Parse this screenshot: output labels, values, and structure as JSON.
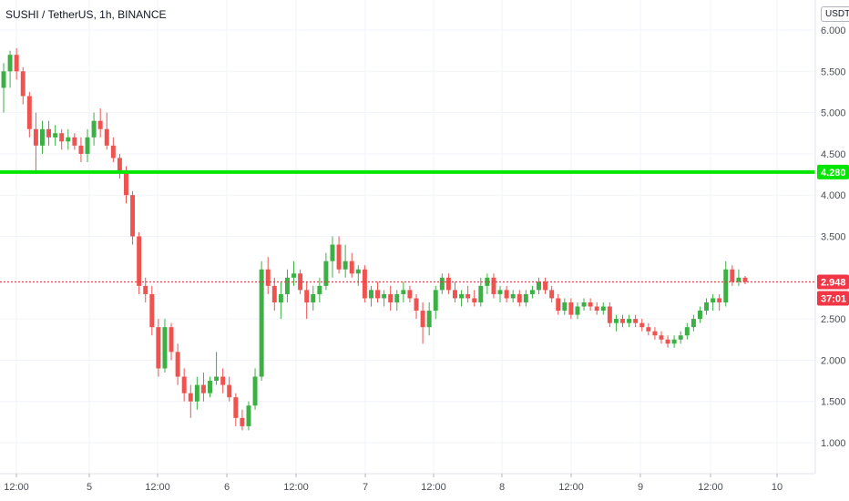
{
  "header": {
    "title": "SUSHI / TetherUS, 1h, BINANCE",
    "unit_button": "USDT"
  },
  "colors": {
    "up": "#26a69a",
    "up_green": "#3cb043",
    "down": "#ef5350",
    "support": "#00e600",
    "last": "#f23645",
    "grid": "#f0f3fa"
  },
  "chart_data": {
    "type": "candlestick",
    "title": "SUSHI / TetherUS, 1h, BINANCE",
    "y_ticks": [
      "1.000",
      "1.500",
      "2.000",
      "2.500",
      "3.500",
      "4.000",
      "4.500",
      "5.000",
      "5.500",
      "6.000"
    ],
    "x_ticks": [
      "12:00",
      "5",
      "12:00",
      "6",
      "12:00",
      "7",
      "12:00",
      "8",
      "12:00",
      "9",
      "12:00",
      "10"
    ],
    "ylim": [
      0.8,
      6.1
    ],
    "support_level": {
      "value": 4.28,
      "label": "4.280"
    },
    "last_price": {
      "value": 2.948,
      "label": "2.948",
      "countdown": "37:01"
    },
    "grid": true,
    "candles": [
      [
        5.3,
        5.6,
        5.0,
        5.5
      ],
      [
        5.5,
        5.75,
        5.3,
        5.7
      ],
      [
        5.7,
        5.78,
        5.4,
        5.5
      ],
      [
        5.5,
        5.55,
        5.1,
        5.2
      ],
      [
        5.2,
        5.25,
        4.7,
        4.8
      ],
      [
        4.8,
        5.0,
        4.3,
        4.6
      ],
      [
        4.6,
        4.9,
        4.5,
        4.8
      ],
      [
        4.8,
        4.9,
        4.6,
        4.7
      ],
      [
        4.7,
        4.85,
        4.6,
        4.75
      ],
      [
        4.75,
        4.8,
        4.55,
        4.65
      ],
      [
        4.65,
        4.8,
        4.55,
        4.7
      ],
      [
        4.7,
        4.75,
        4.55,
        4.6
      ],
      [
        4.6,
        4.7,
        4.4,
        4.5
      ],
      [
        4.5,
        4.8,
        4.4,
        4.7
      ],
      [
        4.7,
        5.0,
        4.6,
        4.9
      ],
      [
        4.9,
        5.05,
        4.7,
        4.8
      ],
      [
        4.8,
        5.0,
        4.55,
        4.6
      ],
      [
        4.6,
        4.7,
        4.4,
        4.45
      ],
      [
        4.45,
        4.5,
        4.2,
        4.3
      ],
      [
        4.3,
        4.35,
        3.9,
        4.0
      ],
      [
        4.0,
        4.05,
        3.4,
        3.5
      ],
      [
        3.5,
        3.55,
        2.8,
        2.9
      ],
      [
        2.9,
        3.0,
        2.7,
        2.8
      ],
      [
        2.8,
        2.9,
        2.3,
        2.4
      ],
      [
        2.4,
        2.5,
        1.8,
        1.9
      ],
      [
        1.9,
        2.5,
        1.85,
        2.4
      ],
      [
        2.4,
        2.45,
        2.0,
        2.1
      ],
      [
        2.1,
        2.2,
        1.7,
        1.8
      ],
      [
        1.8,
        1.9,
        1.5,
        1.6
      ],
      [
        1.6,
        1.7,
        1.3,
        1.5
      ],
      [
        1.5,
        1.8,
        1.4,
        1.7
      ],
      [
        1.7,
        1.85,
        1.5,
        1.6
      ],
      [
        1.6,
        1.8,
        1.55,
        1.75
      ],
      [
        1.75,
        2.1,
        1.7,
        1.8
      ],
      [
        1.8,
        1.9,
        1.6,
        1.7
      ],
      [
        1.7,
        1.8,
        1.5,
        1.55
      ],
      [
        1.55,
        1.6,
        1.2,
        1.3
      ],
      [
        1.3,
        1.4,
        1.15,
        1.2
      ],
      [
        1.2,
        1.5,
        1.15,
        1.45
      ],
      [
        1.45,
        1.9,
        1.4,
        1.8
      ],
      [
        1.8,
        3.2,
        1.75,
        3.1
      ],
      [
        3.1,
        3.25,
        2.8,
        2.9
      ],
      [
        2.9,
        3.0,
        2.6,
        2.7
      ],
      [
        2.7,
        2.95,
        2.5,
        2.8
      ],
      [
        2.8,
        3.1,
        2.7,
        3.0
      ],
      [
        3.0,
        3.2,
        2.9,
        3.05
      ],
      [
        3.05,
        3.1,
        2.8,
        2.85
      ],
      [
        2.85,
        2.95,
        2.5,
        2.7
      ],
      [
        2.7,
        2.9,
        2.6,
        2.8
      ],
      [
        2.8,
        3.0,
        2.7,
        2.9
      ],
      [
        2.9,
        3.3,
        2.85,
        3.2
      ],
      [
        3.2,
        3.5,
        3.0,
        3.4
      ],
      [
        3.4,
        3.5,
        3.05,
        3.1
      ],
      [
        3.1,
        3.4,
        3.0,
        3.2
      ],
      [
        3.2,
        3.3,
        3.0,
        3.05
      ],
      [
        3.05,
        3.15,
        2.9,
        3.1
      ],
      [
        3.1,
        3.15,
        2.7,
        2.75
      ],
      [
        2.75,
        2.9,
        2.65,
        2.85
      ],
      [
        2.85,
        2.95,
        2.7,
        2.75
      ],
      [
        2.75,
        2.85,
        2.65,
        2.8
      ],
      [
        2.8,
        2.9,
        2.6,
        2.7
      ],
      [
        2.7,
        2.85,
        2.6,
        2.8
      ],
      [
        2.8,
        2.95,
        2.7,
        2.85
      ],
      [
        2.85,
        2.9,
        2.7,
        2.75
      ],
      [
        2.75,
        2.8,
        2.5,
        2.6
      ],
      [
        2.6,
        2.7,
        2.2,
        2.4
      ],
      [
        2.4,
        2.7,
        2.3,
        2.6
      ],
      [
        2.6,
        2.9,
        2.5,
        2.85
      ],
      [
        2.85,
        3.05,
        2.8,
        3.0
      ],
      [
        3.0,
        3.05,
        2.8,
        2.85
      ],
      [
        2.85,
        2.95,
        2.7,
        2.75
      ],
      [
        2.75,
        2.85,
        2.65,
        2.8
      ],
      [
        2.8,
        2.9,
        2.7,
        2.75
      ],
      [
        2.75,
        2.85,
        2.65,
        2.7
      ],
      [
        2.7,
        3.0,
        2.65,
        2.9
      ],
      [
        2.9,
        3.05,
        2.8,
        3.0
      ],
      [
        3.0,
        3.05,
        2.75,
        2.8
      ],
      [
        2.8,
        2.9,
        2.7,
        2.85
      ],
      [
        2.85,
        2.9,
        2.7,
        2.75
      ],
      [
        2.75,
        2.85,
        2.7,
        2.8
      ],
      [
        2.8,
        2.85,
        2.65,
        2.7
      ],
      [
        2.7,
        2.85,
        2.65,
        2.8
      ],
      [
        2.8,
        2.9,
        2.75,
        2.85
      ],
      [
        2.85,
        3.0,
        2.8,
        2.95
      ],
      [
        2.95,
        3.0,
        2.8,
        2.85
      ],
      [
        2.85,
        2.9,
        2.7,
        2.75
      ],
      [
        2.75,
        2.8,
        2.55,
        2.6
      ],
      [
        2.6,
        2.75,
        2.55,
        2.7
      ],
      [
        2.7,
        2.75,
        2.5,
        2.55
      ],
      [
        2.55,
        2.7,
        2.5,
        2.65
      ],
      [
        2.65,
        2.75,
        2.6,
        2.7
      ],
      [
        2.7,
        2.75,
        2.6,
        2.65
      ],
      [
        2.65,
        2.7,
        2.55,
        2.6
      ],
      [
        2.6,
        2.7,
        2.55,
        2.65
      ],
      [
        2.65,
        2.7,
        2.4,
        2.45
      ],
      [
        2.45,
        2.55,
        2.35,
        2.5
      ],
      [
        2.5,
        2.55,
        2.4,
        2.45
      ],
      [
        2.45,
        2.55,
        2.4,
        2.5
      ],
      [
        2.5,
        2.55,
        2.4,
        2.45
      ],
      [
        2.45,
        2.5,
        2.35,
        2.4
      ],
      [
        2.4,
        2.45,
        2.3,
        2.35
      ],
      [
        2.35,
        2.4,
        2.25,
        2.3
      ],
      [
        2.3,
        2.35,
        2.2,
        2.25
      ],
      [
        2.25,
        2.3,
        2.15,
        2.2
      ],
      [
        2.2,
        2.3,
        2.15,
        2.25
      ],
      [
        2.25,
        2.35,
        2.2,
        2.3
      ],
      [
        2.3,
        2.45,
        2.25,
        2.4
      ],
      [
        2.4,
        2.55,
        2.35,
        2.5
      ],
      [
        2.5,
        2.65,
        2.45,
        2.6
      ],
      [
        2.6,
        2.75,
        2.55,
        2.7
      ],
      [
        2.7,
        2.8,
        2.6,
        2.75
      ],
      [
        2.75,
        2.8,
        2.6,
        2.7
      ],
      [
        2.7,
        3.2,
        2.65,
        3.1
      ],
      [
        3.1,
        3.15,
        2.9,
        2.95
      ],
      [
        2.95,
        3.1,
        2.9,
        3.0
      ],
      [
        3.0,
        3.02,
        2.92,
        2.95
      ]
    ]
  }
}
